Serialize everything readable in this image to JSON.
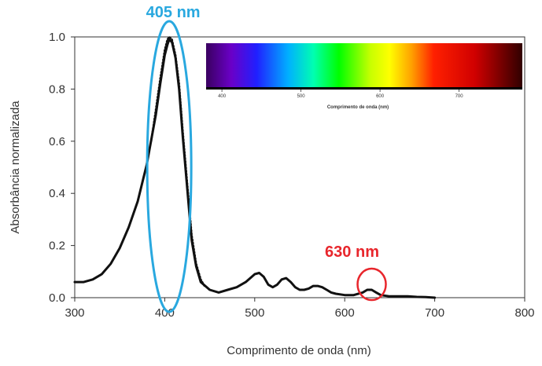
{
  "chart_data": {
    "type": "line",
    "xlabel": "Comprimento de onda (nm)",
    "ylabel": "Absorbância normalizada",
    "xlim": [
      300,
      800
    ],
    "ylim": [
      0,
      1.0
    ],
    "x_ticks": [
      "300",
      "400",
      "500",
      "600",
      "700",
      "800"
    ],
    "y_ticks": [
      "0.0",
      "0.2",
      "0.4",
      "0.6",
      "0.8",
      "1.0"
    ],
    "grid": false,
    "series": [
      {
        "style": "solid",
        "color": "#111111",
        "x": [
          300,
          310,
          320,
          330,
          340,
          350,
          360,
          370,
          380,
          390,
          395,
          400,
          403,
          405,
          408,
          412,
          416,
          420,
          425,
          430,
          435,
          440,
          450,
          460,
          470,
          480,
          490,
          500,
          505,
          510,
          515,
          520,
          525,
          530,
          535,
          540,
          545,
          550,
          555,
          560,
          565,
          570,
          575,
          580,
          585,
          590,
          600,
          610,
          620,
          625,
          630,
          635,
          640,
          650,
          660,
          670,
          680,
          690,
          700
        ],
        "y": [
          0.06,
          0.06,
          0.07,
          0.09,
          0.13,
          0.19,
          0.27,
          0.37,
          0.51,
          0.7,
          0.82,
          0.93,
          0.97,
          0.99,
          0.98,
          0.92,
          0.8,
          0.62,
          0.42,
          0.22,
          0.12,
          0.06,
          0.03,
          0.02,
          0.03,
          0.04,
          0.06,
          0.09,
          0.095,
          0.08,
          0.05,
          0.04,
          0.05,
          0.07,
          0.075,
          0.06,
          0.04,
          0.03,
          0.03,
          0.035,
          0.045,
          0.045,
          0.04,
          0.03,
          0.02,
          0.015,
          0.01,
          0.01,
          0.02,
          0.03,
          0.03,
          0.02,
          0.01,
          0.005,
          0.005,
          0.005,
          0.003,
          0.002,
          0.0
        ]
      },
      {
        "style": "dotted",
        "color": "#111111",
        "x": [
          385,
          390,
          395,
          400,
          403,
          405,
          408,
          412,
          416,
          420,
          425,
          430,
          435,
          440,
          445
        ],
        "y": [
          0.6,
          0.72,
          0.84,
          0.95,
          0.99,
          1.0,
          0.99,
          0.93,
          0.82,
          0.64,
          0.44,
          0.24,
          0.13,
          0.07,
          0.04
        ]
      }
    ],
    "annotations": [
      {
        "text": "405 nm",
        "color": "#29a8df",
        "x": 405,
        "y": 1.0
      },
      {
        "text": "630 nm",
        "color": "#e8262c",
        "x": 630,
        "y": 0.03
      }
    ],
    "spectrum_inset": {
      "range": [
        380,
        780
      ],
      "ticks": [
        "400",
        "500",
        "600",
        "700"
      ],
      "label": "Comprimento de onda (nm)"
    }
  }
}
